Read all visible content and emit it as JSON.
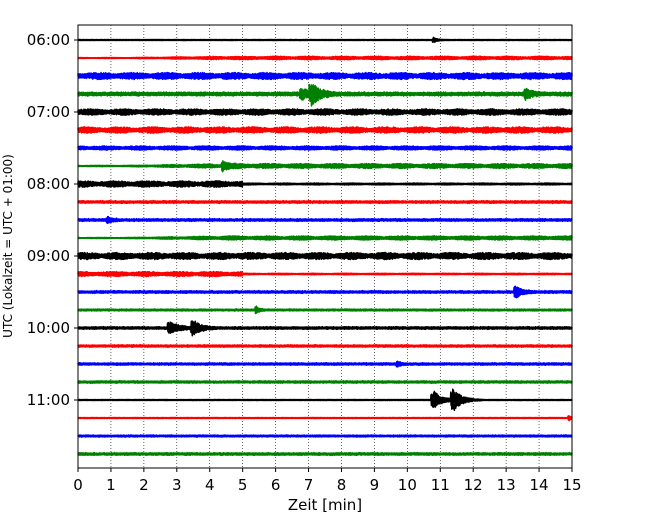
{
  "chart_data": {
    "type": "line",
    "subtype": "helicorder",
    "title": "",
    "xlabel": "Zeit  [min]",
    "ylabel": "UTC (Lokalzeit = UTC + 01:00)",
    "xlim": [
      0,
      15
    ],
    "x_ticks": [
      0,
      1,
      2,
      3,
      4,
      5,
      6,
      7,
      8,
      9,
      10,
      11,
      12,
      13,
      14,
      15
    ],
    "grid": {
      "vertical": true,
      "style": "dotted"
    },
    "start_time": "06:00",
    "row_interval_min": 15,
    "row_count": 24,
    "y_tick_labels": [
      "06:00",
      "07:00",
      "08:00",
      "09:00",
      "10:00",
      "11:00"
    ],
    "color_cycle": [
      "#000000",
      "#ff0000",
      "#0000ff",
      "#008000"
    ],
    "rows": [
      {
        "time": "06:00",
        "amp": 0.12,
        "pattern": "quiet",
        "events": [
          {
            "t": 10.8,
            "a": 0.35,
            "w": 0.15
          }
        ]
      },
      {
        "time": "06:15",
        "amp": 0.25,
        "pattern": "micro_late",
        "events": []
      },
      {
        "time": "06:30",
        "amp": 0.5,
        "pattern": "micro",
        "events": []
      },
      {
        "time": "06:45",
        "amp": 0.3,
        "pattern": "noise",
        "events": [
          {
            "t": 6.8,
            "a": 0.7,
            "w": 0.3
          },
          {
            "t": 7.1,
            "a": 1.6,
            "w": 0.35
          },
          {
            "t": 13.6,
            "a": 0.7,
            "w": 0.25
          }
        ]
      },
      {
        "time": "07:00",
        "amp": 0.45,
        "pattern": "micro",
        "events": []
      },
      {
        "time": "07:15",
        "amp": 0.45,
        "pattern": "micro",
        "events": []
      },
      {
        "time": "07:30",
        "amp": 0.3,
        "pattern": "micro",
        "events": []
      },
      {
        "time": "07:45",
        "amp": 0.35,
        "pattern": "micro_late",
        "events": [
          {
            "t": 4.4,
            "a": 0.6,
            "w": 0.2
          }
        ]
      },
      {
        "time": "08:00",
        "amp": 0.45,
        "pattern": "micro_early",
        "events": []
      },
      {
        "time": "08:15",
        "amp": 0.2,
        "pattern": "noise",
        "events": []
      },
      {
        "time": "08:30",
        "amp": 0.2,
        "pattern": "noise",
        "events": [
          {
            "t": 0.9,
            "a": 0.35,
            "w": 0.2
          }
        ]
      },
      {
        "time": "08:45",
        "amp": 0.3,
        "pattern": "micro_late",
        "events": []
      },
      {
        "time": "09:00",
        "amp": 0.5,
        "pattern": "micro",
        "events": []
      },
      {
        "time": "09:15",
        "amp": 0.35,
        "pattern": "micro_early",
        "events": []
      },
      {
        "time": "09:30",
        "amp": 0.2,
        "pattern": "noise",
        "events": [
          {
            "t": 13.3,
            "a": 0.8,
            "w": 0.25
          }
        ]
      },
      {
        "time": "09:45",
        "amp": 0.15,
        "pattern": "noise",
        "events": [
          {
            "t": 5.4,
            "a": 0.6,
            "w": 0.12
          }
        ]
      },
      {
        "time": "10:00",
        "amp": 0.2,
        "pattern": "noise",
        "events": [
          {
            "t": 2.8,
            "a": 0.8,
            "w": 0.35
          },
          {
            "t": 3.5,
            "a": 1.1,
            "w": 0.3
          }
        ]
      },
      {
        "time": "10:15",
        "amp": 0.18,
        "pattern": "noise",
        "events": []
      },
      {
        "time": "10:30",
        "amp": 0.18,
        "pattern": "noise",
        "events": [
          {
            "t": 9.7,
            "a": 0.4,
            "w": 0.12
          }
        ]
      },
      {
        "time": "10:45",
        "amp": 0.18,
        "pattern": "noise",
        "events": []
      },
      {
        "time": "11:00",
        "amp": 0.12,
        "pattern": "quiet",
        "events": [
          {
            "t": 10.8,
            "a": 1.3,
            "w": 0.35
          },
          {
            "t": 11.4,
            "a": 1.6,
            "w": 0.35
          }
        ]
      },
      {
        "time": "11:15",
        "amp": 0.12,
        "pattern": "quiet",
        "events": [
          {
            "t": 14.9,
            "a": 0.4,
            "w": 0.1
          }
        ]
      },
      {
        "time": "11:30",
        "amp": 0.15,
        "pattern": "noise",
        "events": []
      },
      {
        "time": "11:45",
        "amp": 0.2,
        "pattern": "noise",
        "events": []
      }
    ]
  }
}
